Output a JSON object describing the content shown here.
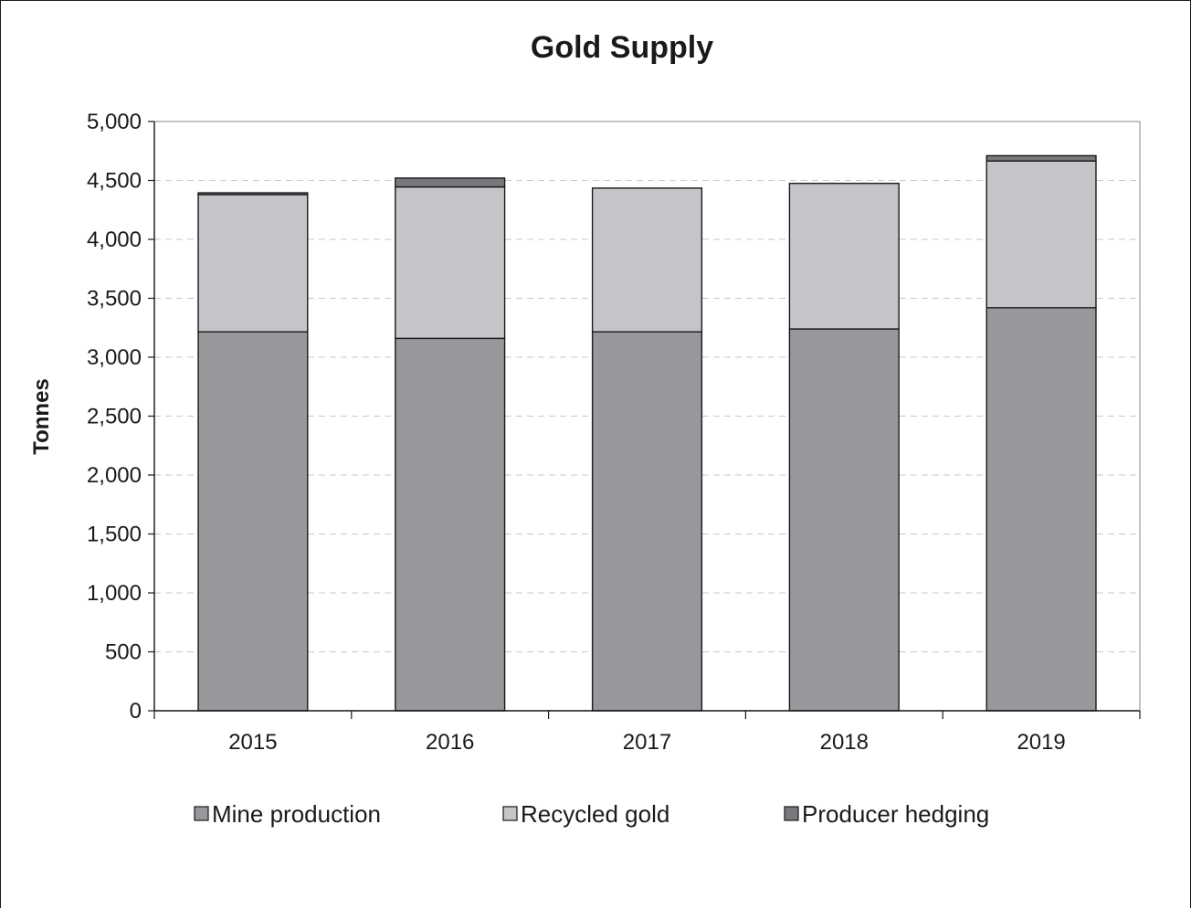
{
  "chart_data": {
    "type": "bar",
    "stacked": true,
    "title": "Gold Supply",
    "xlabel": "",
    "ylabel": "Tonnes",
    "categories": [
      "2015",
      "2016",
      "2017",
      "2018",
      "2019"
    ],
    "series": [
      {
        "name": "Mine production",
        "values": [
          3215,
          3160,
          3215,
          3240,
          3420
        ],
        "color": "#97989c"
      },
      {
        "name": "Recycled gold",
        "values": [
          1165,
          1285,
          1220,
          1235,
          1245
        ],
        "color": "#c4c5c9"
      },
      {
        "name": "Producer hedging",
        "values": [
          15,
          75,
          0,
          0,
          45
        ],
        "color": "#77787c"
      }
    ],
    "ylim": [
      0,
      5000
    ],
    "yticks": [
      0,
      500,
      1000,
      1500,
      2000,
      2500,
      3000,
      3500,
      4000,
      4500,
      5000
    ],
    "ytick_labels": [
      "0",
      "500",
      "1,000",
      "1,500",
      "2,000",
      "2,500",
      "3,000",
      "3,500",
      "4,000",
      "4,500",
      "5,000"
    ],
    "grid": "horizontal dashed",
    "legend": "bottom"
  }
}
